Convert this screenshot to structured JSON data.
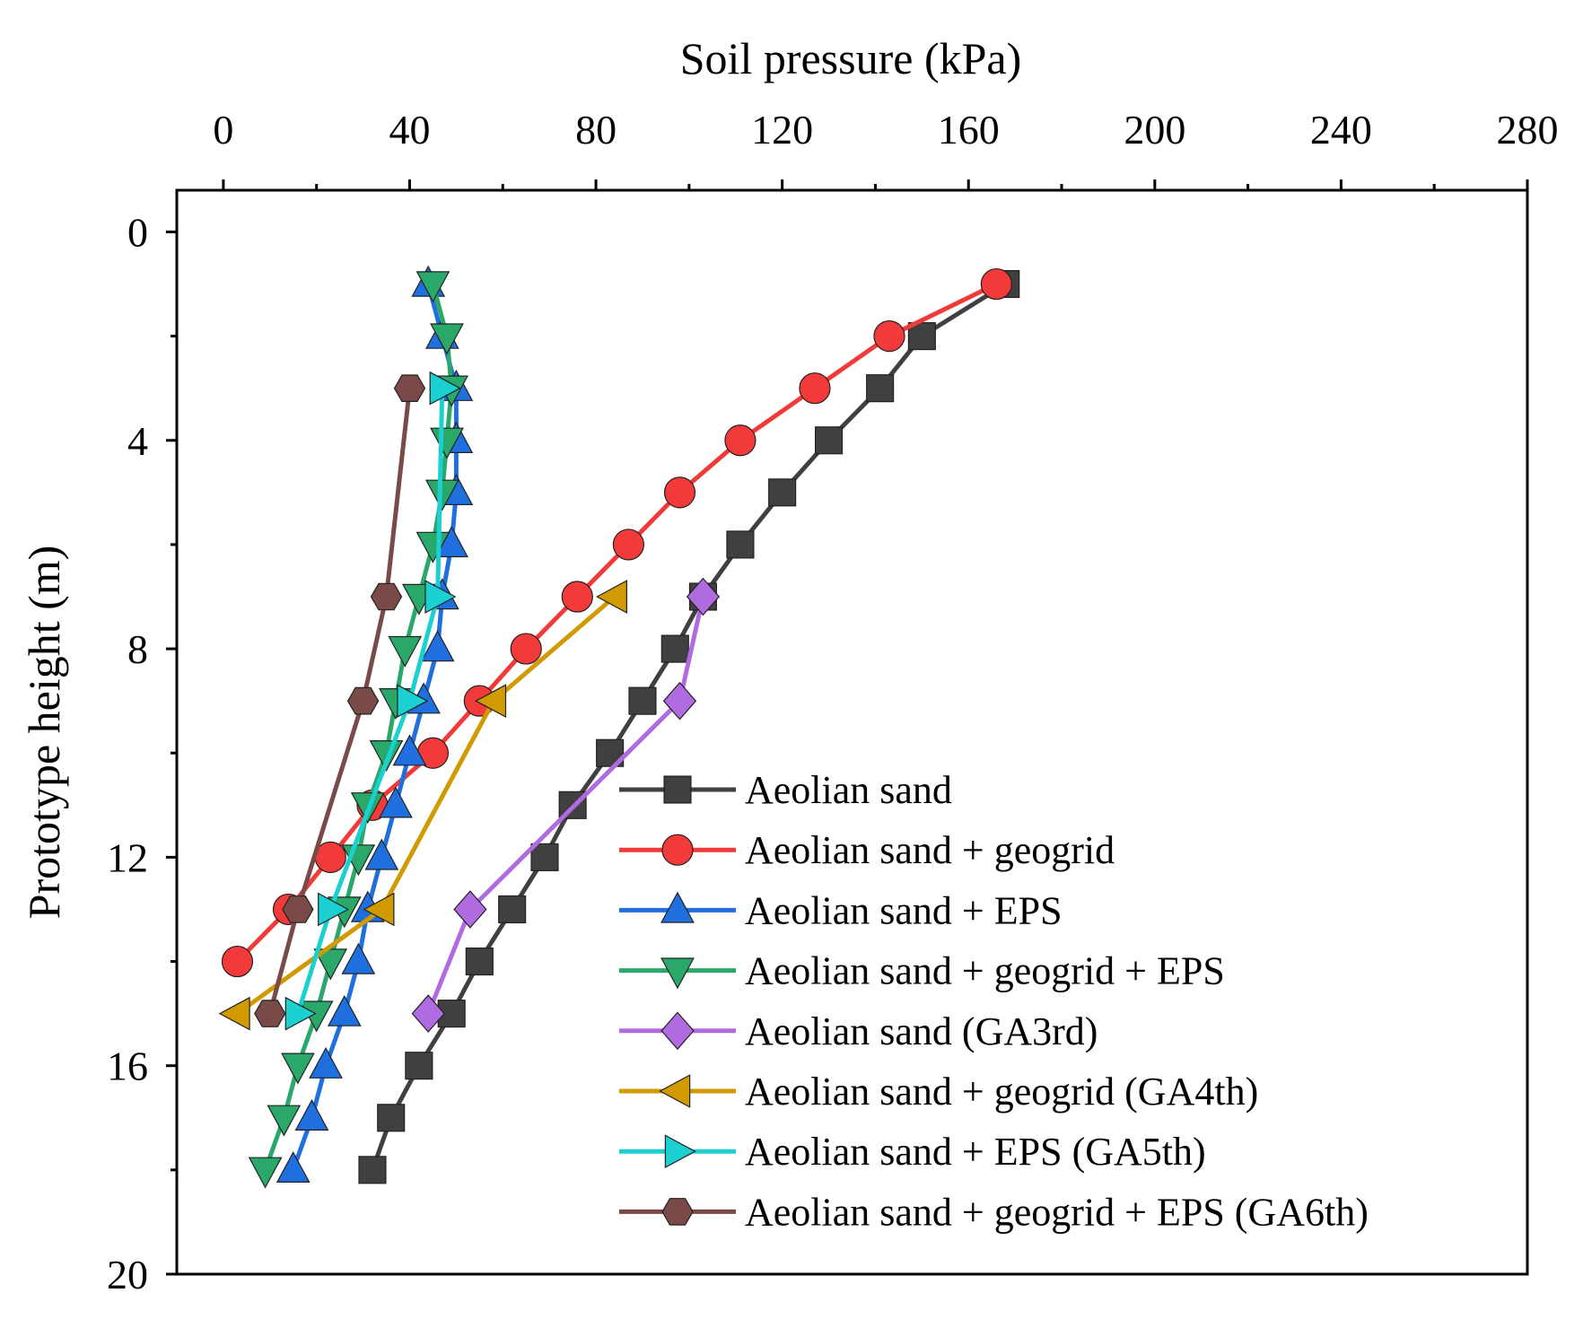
{
  "chart_data": {
    "type": "line",
    "xlabel": "Soil pressure (kPa)",
    "ylabel": "Prototype height (m)",
    "xlim": [
      -10,
      280
    ],
    "ylim": [
      -0.8,
      20
    ],
    "y_inverted": true,
    "x_axis_position": "top",
    "x_ticks": [
      0,
      40,
      80,
      120,
      160,
      200,
      240,
      280
    ],
    "x_tick_labels": [
      "0",
      "40",
      "80",
      "120",
      "160",
      "200",
      "240",
      "280"
    ],
    "y_ticks": [
      0,
      4,
      8,
      12,
      16,
      20
    ],
    "y_tick_labels": [
      "0",
      "4",
      "8",
      "12",
      "16",
      "20"
    ],
    "legend_position": "bottom-right",
    "series": [
      {
        "name": "Aeolian sand",
        "color": "#404040",
        "marker": "square",
        "points": [
          [
            168,
            1
          ],
          [
            150,
            2
          ],
          [
            141,
            3
          ],
          [
            130,
            4
          ],
          [
            120,
            5
          ],
          [
            111,
            6
          ],
          [
            103,
            7
          ],
          [
            97,
            8
          ],
          [
            90,
            9
          ],
          [
            83,
            10
          ],
          [
            75,
            11
          ],
          [
            69,
            12
          ],
          [
            62,
            13
          ],
          [
            55,
            14
          ],
          [
            49,
            15
          ],
          [
            42,
            16
          ],
          [
            36,
            17
          ],
          [
            32,
            18
          ]
        ]
      },
      {
        "name": "Aeolian sand + geogrid",
        "color": "#f23a3a",
        "marker": "circle",
        "points": [
          [
            166,
            1
          ],
          [
            143,
            2
          ],
          [
            127,
            3
          ],
          [
            111,
            4
          ],
          [
            98,
            5
          ],
          [
            87,
            6
          ],
          [
            76,
            7
          ],
          [
            65,
            8
          ],
          [
            55,
            9
          ],
          [
            45,
            10
          ],
          [
            32,
            11
          ],
          [
            23,
            12
          ],
          [
            14,
            13
          ],
          [
            3,
            14
          ]
        ]
      },
      {
        "name": "Aeolian sand + EPS",
        "color": "#1f6fdf",
        "marker": "triangle-up",
        "points": [
          [
            44,
            1
          ],
          [
            47,
            2
          ],
          [
            50,
            3
          ],
          [
            50,
            4
          ],
          [
            50,
            5
          ],
          [
            49,
            6
          ],
          [
            47,
            7
          ],
          [
            46,
            8
          ],
          [
            43,
            9
          ],
          [
            40,
            10
          ],
          [
            37,
            11
          ],
          [
            34,
            12
          ],
          [
            31,
            13
          ],
          [
            29,
            14
          ],
          [
            26,
            15
          ],
          [
            22,
            16
          ],
          [
            19,
            17
          ],
          [
            15,
            18
          ]
        ]
      },
      {
        "name": "Aeolian sand + geogrid + EPS",
        "color": "#2aa86a",
        "marker": "triangle-down",
        "points": [
          [
            45,
            1
          ],
          [
            48,
            2
          ],
          [
            49,
            3
          ],
          [
            48,
            4
          ],
          [
            47,
            5
          ],
          [
            45,
            6
          ],
          [
            42,
            7
          ],
          [
            39,
            8
          ],
          [
            37,
            9
          ],
          [
            35,
            10
          ],
          [
            31,
            11
          ],
          [
            29,
            12
          ],
          [
            26,
            13
          ],
          [
            23,
            14
          ],
          [
            20,
            15
          ],
          [
            16,
            16
          ],
          [
            13,
            17
          ],
          [
            9,
            18
          ]
        ]
      },
      {
        "name": "Aeolian sand (GA3rd)",
        "color": "#b06be0",
        "marker": "diamond",
        "points": [
          [
            103,
            7
          ],
          [
            98,
            9
          ],
          [
            53,
            13
          ],
          [
            44,
            15
          ]
        ]
      },
      {
        "name": "Aeolian sand + geogrid (GA4th)",
        "color": "#d09a00",
        "marker": "triangle-left",
        "points": [
          [
            84,
            7
          ],
          [
            58,
            9
          ],
          [
            34,
            13
          ],
          [
            3,
            15
          ]
        ]
      },
      {
        "name": "Aeolian sand + EPS (GA5th)",
        "color": "#1ad0d0",
        "marker": "triangle-right",
        "points": [
          [
            47,
            3
          ],
          [
            46,
            7
          ],
          [
            40,
            9
          ],
          [
            23,
            13
          ],
          [
            16,
            15
          ]
        ]
      },
      {
        "name": "Aeolian sand + geogrid + EPS (GA6th)",
        "color": "#7a4a48",
        "marker": "hexagon",
        "points": [
          [
            40,
            3
          ],
          [
            35,
            7
          ],
          [
            30,
            9
          ],
          [
            16,
            13
          ],
          [
            10,
            15
          ]
        ]
      }
    ]
  }
}
